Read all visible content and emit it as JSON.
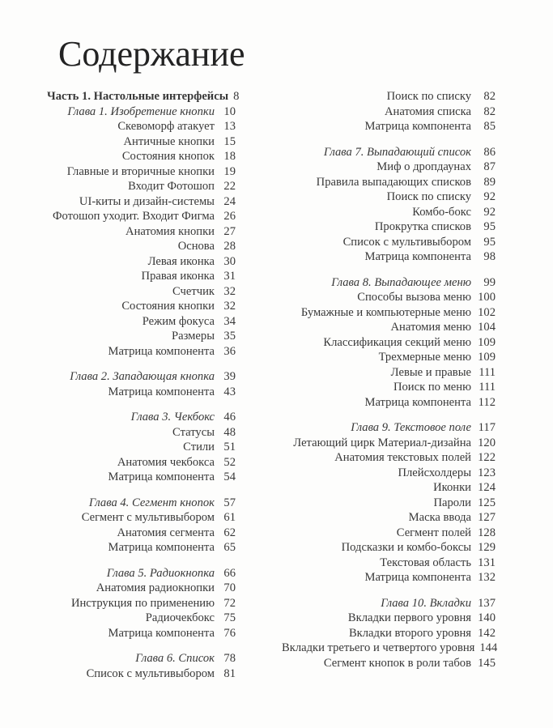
{
  "title": "Содержание",
  "colors": {
    "background": "#fdfdfc",
    "title_text": "#232323",
    "body_text": "#383838"
  },
  "columns": [
    {
      "name": "left",
      "sections": [
        {
          "entries": [
            {
              "label": "Часть 1. Настольные интерфейсы",
              "page": "8",
              "style": "part"
            },
            {
              "label": "Глава 1. Изобретение кнопки",
              "page": "10",
              "style": "chapter"
            },
            {
              "label": "Скевоморф атакует",
              "page": "13",
              "style": "topic"
            },
            {
              "label": "Античные кнопки",
              "page": "15",
              "style": "topic"
            },
            {
              "label": "Состояния кнопок",
              "page": "18",
              "style": "topic"
            },
            {
              "label": "Главные и вторичные кнопки",
              "page": "19",
              "style": "topic"
            },
            {
              "label": "Входит Фотошоп",
              "page": "22",
              "style": "topic"
            },
            {
              "label": "UI-киты и дизайн-системы",
              "page": "24",
              "style": "topic"
            },
            {
              "label": "Фотошоп уходит. Входит Фигма",
              "page": "26",
              "style": "topic"
            },
            {
              "label": "Анатомия кнопки",
              "page": "27",
              "style": "topic"
            },
            {
              "label": "Основа",
              "page": "28",
              "style": "topic"
            },
            {
              "label": "Левая иконка",
              "page": "30",
              "style": "topic"
            },
            {
              "label": "Правая иконка",
              "page": "31",
              "style": "topic"
            },
            {
              "label": "Счетчик",
              "page": "32",
              "style": "topic"
            },
            {
              "label": "Состояния кнопки",
              "page": "32",
              "style": "topic"
            },
            {
              "label": "Режим фокуса",
              "page": "34",
              "style": "topic"
            },
            {
              "label": "Размеры",
              "page": "35",
              "style": "topic"
            },
            {
              "label": "Матрица компонента",
              "page": "36",
              "style": "topic"
            }
          ]
        },
        {
          "entries": [
            {
              "label": "Глава 2. Западающая кнопка",
              "page": "39",
              "style": "chapter"
            },
            {
              "label": "Матрица компонента",
              "page": "43",
              "style": "topic"
            }
          ]
        },
        {
          "entries": [
            {
              "label": "Глава 3. Чекбокс",
              "page": "46",
              "style": "chapter"
            },
            {
              "label": "Статусы",
              "page": "48",
              "style": "topic"
            },
            {
              "label": "Стили",
              "page": "51",
              "style": "topic"
            },
            {
              "label": "Анатомия чекбокса",
              "page": "52",
              "style": "topic"
            },
            {
              "label": "Матрица компонента",
              "page": "54",
              "style": "topic"
            }
          ]
        },
        {
          "entries": [
            {
              "label": "Глава 4. Сегмент кнопок",
              "page": "57",
              "style": "chapter"
            },
            {
              "label": "Сегмент с мультивыбором",
              "page": "61",
              "style": "topic"
            },
            {
              "label": "Анатомия сегмента",
              "page": "62",
              "style": "topic"
            },
            {
              "label": "Матрица компонента",
              "page": "65",
              "style": "topic"
            }
          ]
        },
        {
          "entries": [
            {
              "label": "Глава 5. Радиокнопка",
              "page": "66",
              "style": "chapter"
            },
            {
              "label": "Анатомия радиокнопки",
              "page": "70",
              "style": "topic"
            },
            {
              "label": "Инструкция по применению",
              "page": "72",
              "style": "topic"
            },
            {
              "label": "Радиочекбокс",
              "page": "75",
              "style": "topic"
            },
            {
              "label": "Матрица компонента",
              "page": "76",
              "style": "topic"
            }
          ]
        },
        {
          "entries": [
            {
              "label": "Глава 6. Список",
              "page": "78",
              "style": "chapter"
            },
            {
              "label": "Список с мультивыбором",
              "page": "81",
              "style": "topic"
            }
          ]
        }
      ]
    },
    {
      "name": "right",
      "sections": [
        {
          "entries": [
            {
              "label": "Поиск по списку",
              "page": "82",
              "style": "topic"
            },
            {
              "label": "Анатомия списка",
              "page": "82",
              "style": "topic"
            },
            {
              "label": "Матрица компонента",
              "page": "85",
              "style": "topic"
            }
          ]
        },
        {
          "entries": [
            {
              "label": "Глава 7. Выпадающий список",
              "page": "86",
              "style": "chapter"
            },
            {
              "label": "Миф о дропдаунах",
              "page": "87",
              "style": "topic"
            },
            {
              "label": "Правила выпадающих списков",
              "page": "89",
              "style": "topic"
            },
            {
              "label": "Поиск по списку",
              "page": "92",
              "style": "topic"
            },
            {
              "label": "Комбо-бокс",
              "page": "92",
              "style": "topic"
            },
            {
              "label": "Прокрутка списков",
              "page": "95",
              "style": "topic"
            },
            {
              "label": "Список с мультивыбором",
              "page": "95",
              "style": "topic"
            },
            {
              "label": "Матрица компонента",
              "page": "98",
              "style": "topic"
            }
          ]
        },
        {
          "entries": [
            {
              "label": "Глава 8. Выпадающее меню",
              "page": "99",
              "style": "chapter"
            },
            {
              "label": "Способы вызова меню",
              "page": "100",
              "style": "topic"
            },
            {
              "label": "Бумажные и компьютерные меню",
              "page": "102",
              "style": "topic"
            },
            {
              "label": "Анатомия меню",
              "page": "104",
              "style": "topic"
            },
            {
              "label": "Классификация секций меню",
              "page": "109",
              "style": "topic"
            },
            {
              "label": "Трехмерные меню",
              "page": "109",
              "style": "topic"
            },
            {
              "label": "Левые и правые",
              "page": "111",
              "style": "topic"
            },
            {
              "label": "Поиск по меню",
              "page": "111",
              "style": "topic"
            },
            {
              "label": "Матрица компонента",
              "page": "112",
              "style": "topic"
            }
          ]
        },
        {
          "entries": [
            {
              "label": "Глава 9. Текстовое поле",
              "page": "117",
              "style": "chapter"
            },
            {
              "label": "Летающий цирк Материал-дизайна",
              "page": "120",
              "style": "topic"
            },
            {
              "label": "Анатомия текстовых полей",
              "page": "122",
              "style": "topic"
            },
            {
              "label": "Плейсхолдеры",
              "page": "123",
              "style": "topic"
            },
            {
              "label": "Иконки",
              "page": "124",
              "style": "topic"
            },
            {
              "label": "Пароли",
              "page": "125",
              "style": "topic"
            },
            {
              "label": "Маска ввода",
              "page": "127",
              "style": "topic"
            },
            {
              "label": "Сегмент полей",
              "page": "128",
              "style": "topic"
            },
            {
              "label": "Подсказки и комбо-боксы",
              "page": "129",
              "style": "topic"
            },
            {
              "label": "Текстовая область",
              "page": "131",
              "style": "topic"
            },
            {
              "label": "Матрица компонента",
              "page": "132",
              "style": "topic"
            }
          ]
        },
        {
          "entries": [
            {
              "label": "Глава 10. Вкладки",
              "page": "137",
              "style": "chapter"
            },
            {
              "label": "Вкладки первого уровня",
              "page": "140",
              "style": "topic"
            },
            {
              "label": "Вкладки второго уровня",
              "page": "142",
              "style": "topic"
            },
            {
              "label": "Вкладки третьего и четвертого уровня",
              "page": "144",
              "style": "topic"
            },
            {
              "label": "Сегмент кнопок в роли табов",
              "page": "145",
              "style": "topic"
            }
          ]
        }
      ]
    }
  ]
}
